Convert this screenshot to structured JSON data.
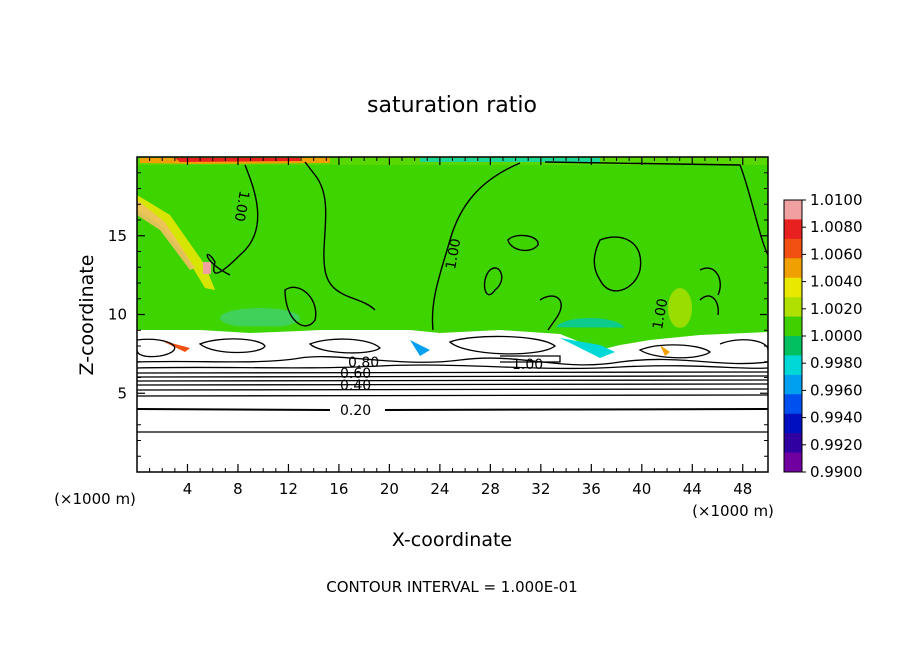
{
  "chart_data": {
    "type": "heatmap",
    "title": "saturation ratio",
    "xlabel": "X-coordinate",
    "ylabel": "Z-coordinate",
    "x_unit": "(×1000 m)",
    "y_unit": "(×1000 m)",
    "xlim": [
      0,
      50
    ],
    "ylim": [
      0,
      20
    ],
    "x_ticks": [
      4,
      8,
      12,
      16,
      20,
      24,
      28,
      32,
      36,
      40,
      44,
      48
    ],
    "y_ticks": [
      5,
      10,
      15
    ],
    "footer": "CONTOUR INTERVAL = 1.000E-01",
    "colorbar": {
      "min": 0.99,
      "max": 1.01,
      "labels": [
        "1.0100",
        "1.0080",
        "1.0060",
        "1.0040",
        "1.0020",
        "1.0000",
        "0.9980",
        "0.9960",
        "0.9940",
        "0.9920",
        "0.9900"
      ],
      "colors": [
        "#f0a0a0",
        "#e82020",
        "#f05010",
        "#f0a000",
        "#e8e800",
        "#b0e000",
        "#40d000",
        "#00c060",
        "#00d8d8",
        "#00a0f0",
        "#0050f0",
        "#0010c0",
        "#3000a0",
        "#7000a0"
      ]
    },
    "contour_labels": [
      "1.00",
      "1.00",
      "1.00",
      "1.00",
      "0.80",
      "0.60",
      "0.40",
      "0.20"
    ],
    "contour_interval": 0.1
  }
}
